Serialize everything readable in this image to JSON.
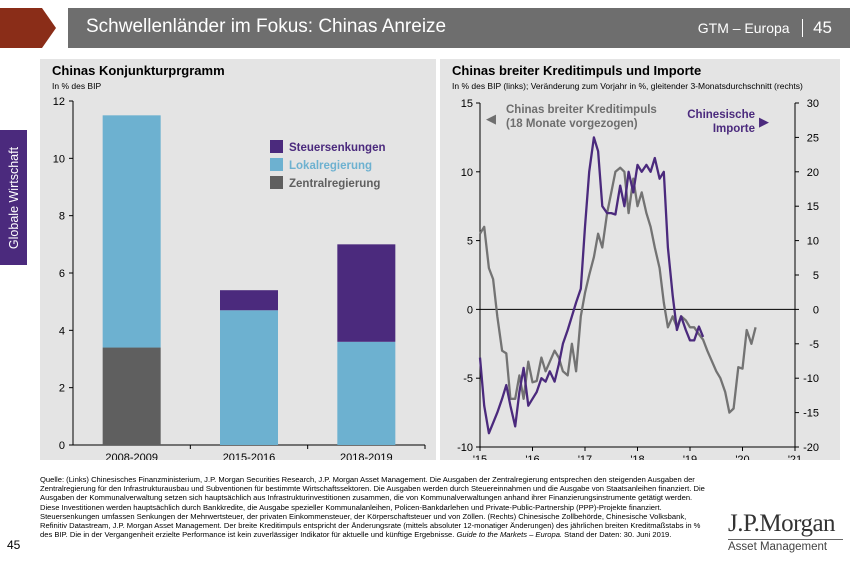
{
  "header": {
    "title": "Schwellenländer im Fokus: Chinas Anreize",
    "series": "GTM – Europa",
    "page": "45"
  },
  "sidebar": {
    "label": "Globale Wirtschaft"
  },
  "left_panel": {
    "title": "Chinas Konjunkturprgramm",
    "subtitle": "In % des BIP"
  },
  "right_panel": {
    "title": "Chinas breiter Kreditimpuls und Importe",
    "subtitle": "In % des BIP (links); Veränderung zum Vorjahr in %, gleitender 3-Monatsdurchschnitt (rechts)",
    "grey_label": [
      "Chinas breiter Kreditimpuls",
      "(18 Monate vorgezogen)"
    ],
    "purple_label": [
      "Chinesische",
      "Importe"
    ],
    "left_arrow": "◀",
    "right_arrow": "▶"
  },
  "footer": {
    "text": "Quelle: (Links) Chinesisches Finanzministerium, J.P. Morgan Securities Research, J.P. Morgan Asset Management. Die Ausgaben der Zentralregierung entsprechen den steigenden Ausgaben der Zentralregierung für den Infrastrukturausbau und Subventionen für bestimmte Wirtschaftssektoren. Die Ausgaben werden durch Steuereinnahmen und die Ausgabe von Staatsanleihen finanziert. Die Ausgaben der Kommunalverwaltung setzen sich hauptsächlich aus Infrastrukturinvestitionen zusammen, die von Kommunalverwaltungen anhand ihrer Finanzierungsinstrumente getätigt werden. Diese Investitionen werden hauptsächlich durch Bankkredite, die Ausgabe spezieller Kommunalanleihen, Policen-Bankdarlehen und Private-Public-Partnership (PPP)-Projekte finanziert. Steuersenkungen umfassen Senkungen der Mehrwertsteuer, der privaten Einkommensteuer, der Körperschaftsteuer und von Zöllen. (Rechts) Chinesische Zollbehörde, Chinesische Volksbank, Refinitiv Datastream, J.P. Morgan Asset Management. Der breite Kreditimpuls entspricht der Änderungsrate (mittels absoluter 12-monatiger Änderungen) des jährlichen breiten Kreditmaßstabs in % des BIP. Die in der Vergangenheit erzielte Performance ist kein zuverlässiger Indikator für aktuelle und künftige Ergebnisse.",
    "italic": "Guide to the Markets – Europa.",
    "tail": "Stand der Daten: 30. Juni 2019."
  },
  "page_number": "45",
  "logo": {
    "name": "J.P.Morgan",
    "tag": "Asset Management"
  },
  "colors": {
    "purple": "#4b2a7d",
    "light_blue": "#6db1d0",
    "dark_grey": "#5f5f5f",
    "grey_line": "#737373",
    "panel": "#e4e4e4"
  },
  "chart_data": [
    {
      "type": "bar",
      "stacked": true,
      "title": "Chinas Konjunkturprgramm",
      "ylabel": "In % des BIP",
      "categories": [
        "2008-2009",
        "2015-2016",
        "2018-2019"
      ],
      "series": [
        {
          "name": "Zentralregierung",
          "color": "#5f5f5f",
          "values": [
            3.4,
            0,
            0
          ]
        },
        {
          "name": "Lokalregierung",
          "color": "#6db1d0",
          "values": [
            8.1,
            4.7,
            3.6
          ]
        },
        {
          "name": "Steuersenkungen",
          "color": "#4b2a7d",
          "values": [
            0,
            0.7,
            3.4
          ]
        }
      ],
      "ylim": [
        0,
        12
      ],
      "yticks": [
        "0",
        "2",
        "4",
        "6",
        "8",
        "10",
        "12"
      ],
      "legend": "top-right"
    },
    {
      "type": "line",
      "title": "Chinas breiter Kreditimpuls und Importe",
      "xticks": [
        "'15",
        "'16",
        "'17",
        "'18",
        "'19",
        "'20",
        "'21"
      ],
      "xlim": [
        2015,
        2021
      ],
      "y_left": {
        "range": [
          -10,
          15
        ],
        "ticks": [
          "-10",
          "-5",
          "0",
          "5",
          "10",
          "15"
        ]
      },
      "y_right": {
        "range": [
          -20,
          30
        ],
        "ticks": [
          "-20",
          "-15",
          "-10",
          "-5",
          "0",
          "5",
          "10",
          "15",
          "20",
          "25",
          "30"
        ]
      },
      "grid": false,
      "series": [
        {
          "name": "Chinas breiter Kreditimpuls (18 Monate vorgezogen)",
          "axis": "left",
          "color": "#737373",
          "points": [
            [
              2015.0,
              5.5
            ],
            [
              2015.08,
              6.0
            ],
            [
              2015.17,
              3.0
            ],
            [
              2015.25,
              2.2
            ],
            [
              2015.33,
              -0.5
            ],
            [
              2015.42,
              -3.0
            ],
            [
              2015.5,
              -3.2
            ],
            [
              2015.58,
              -6.5
            ],
            [
              2015.67,
              -6.5
            ],
            [
              2015.75,
              -4.8
            ],
            [
              2015.83,
              -6.5
            ],
            [
              2015.92,
              -3.8
            ],
            [
              2016.0,
              -5.3
            ],
            [
              2016.08,
              -5.2
            ],
            [
              2016.17,
              -3.5
            ],
            [
              2016.25,
              -4.5
            ],
            [
              2016.33,
              -3.8
            ],
            [
              2016.42,
              -3.0
            ],
            [
              2016.5,
              -3.5
            ],
            [
              2016.58,
              -4.5
            ],
            [
              2016.67,
              -4.8
            ],
            [
              2016.75,
              -2.5
            ],
            [
              2016.83,
              -4.5
            ],
            [
              2016.92,
              -0.5
            ],
            [
              2017.0,
              1.2
            ],
            [
              2017.08,
              2.5
            ],
            [
              2017.17,
              3.8
            ],
            [
              2017.25,
              5.5
            ],
            [
              2017.33,
              4.5
            ],
            [
              2017.42,
              7.0
            ],
            [
              2017.5,
              8.5
            ],
            [
              2017.58,
              10.0
            ],
            [
              2017.67,
              10.3
            ],
            [
              2017.75,
              10.0
            ],
            [
              2017.83,
              7.0
            ],
            [
              2017.92,
              9.5
            ],
            [
              2018.0,
              7.5
            ],
            [
              2018.08,
              8.5
            ],
            [
              2018.17,
              7.0
            ],
            [
              2018.25,
              6.0
            ],
            [
              2018.33,
              4.5
            ],
            [
              2018.42,
              3.0
            ],
            [
              2018.5,
              0.5
            ],
            [
              2018.58,
              -1.3
            ],
            [
              2018.67,
              -0.5
            ],
            [
              2018.75,
              -1.3
            ],
            [
              2018.83,
              -0.5
            ],
            [
              2018.92,
              -0.8
            ],
            [
              2019.0,
              -1.3
            ],
            [
              2019.08,
              -1.3
            ],
            [
              2019.17,
              -1.8
            ],
            [
              2019.25,
              -2.2
            ],
            [
              2019.33,
              -3.0
            ],
            [
              2019.42,
              -3.8
            ],
            [
              2019.5,
              -4.5
            ],
            [
              2019.58,
              -5.0
            ],
            [
              2019.67,
              -6.0
            ],
            [
              2019.75,
              -7.5
            ],
            [
              2019.83,
              -7.2
            ],
            [
              2019.92,
              -4.2
            ],
            [
              2020.0,
              -4.3
            ],
            [
              2020.08,
              -1.5
            ],
            [
              2020.17,
              -2.5
            ],
            [
              2020.25,
              -1.3
            ]
          ]
        },
        {
          "name": "Chinesische Importe",
          "axis": "right",
          "color": "#4b2a7d",
          "points": [
            [
              2015.0,
              -7
            ],
            [
              2015.08,
              -14
            ],
            [
              2015.17,
              -18
            ],
            [
              2015.25,
              -16.5
            ],
            [
              2015.33,
              -15
            ],
            [
              2015.42,
              -13
            ],
            [
              2015.5,
              -11
            ],
            [
              2015.58,
              -14
            ],
            [
              2015.67,
              -17
            ],
            [
              2015.75,
              -12
            ],
            [
              2015.83,
              -8.5
            ],
            [
              2015.92,
              -14
            ],
            [
              2016.0,
              -13
            ],
            [
              2016.08,
              -12
            ],
            [
              2016.17,
              -10
            ],
            [
              2016.25,
              -10.5
            ],
            [
              2016.33,
              -9
            ],
            [
              2016.42,
              -10.5
            ],
            [
              2016.5,
              -8
            ],
            [
              2016.58,
              -5
            ],
            [
              2016.67,
              -3
            ],
            [
              2016.75,
              -1
            ],
            [
              2016.83,
              1
            ],
            [
              2016.92,
              3
            ],
            [
              2017.0,
              12
            ],
            [
              2017.08,
              20
            ],
            [
              2017.17,
              25
            ],
            [
              2017.25,
              23
            ],
            [
              2017.33,
              15
            ],
            [
              2017.42,
              14
            ],
            [
              2017.5,
              14
            ],
            [
              2017.58,
              13.8
            ],
            [
              2017.67,
              18
            ],
            [
              2017.75,
              15
            ],
            [
              2017.83,
              20
            ],
            [
              2017.92,
              17
            ],
            [
              2018.0,
              21
            ],
            [
              2018.08,
              20
            ],
            [
              2018.17,
              21
            ],
            [
              2018.25,
              20
            ],
            [
              2018.33,
              22
            ],
            [
              2018.42,
              19
            ],
            [
              2018.5,
              20
            ],
            [
              2018.58,
              9
            ],
            [
              2018.67,
              2
            ],
            [
              2018.75,
              -3
            ],
            [
              2018.83,
              -1
            ],
            [
              2018.92,
              -3
            ],
            [
              2019.0,
              -4.5
            ],
            [
              2019.08,
              -4.5
            ],
            [
              2019.17,
              -2.5
            ],
            [
              2019.25,
              -4
            ]
          ]
        }
      ]
    }
  ]
}
